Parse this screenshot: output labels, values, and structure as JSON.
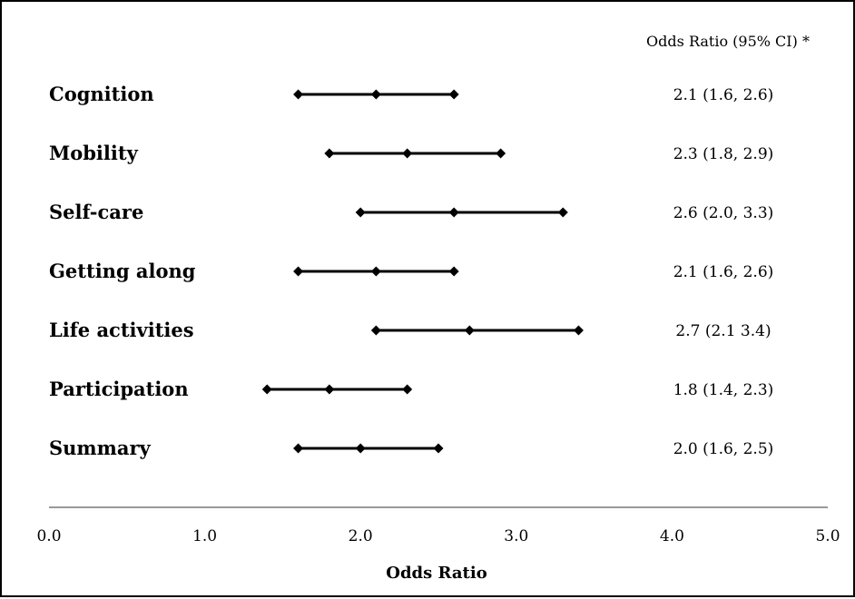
{
  "chart_data": {
    "type": "forest",
    "column_header": "Odds Ratio (95% CI) *",
    "xlabel": "Odds Ratio",
    "xlim": [
      0.0,
      5.0
    ],
    "xticks": [
      "0.0",
      "1.0",
      "2.0",
      "3.0",
      "4.0",
      "5.0"
    ],
    "grid": false,
    "rows": [
      {
        "label": "Cognition",
        "estimate": 2.1,
        "lower": 1.6,
        "upper": 2.6,
        "text": "2.1 (1.6, 2.6)"
      },
      {
        "label": "Mobility",
        "estimate": 2.3,
        "lower": 1.8,
        "upper": 2.9,
        "text": "2.3 (1.8, 2.9)"
      },
      {
        "label": "Self-care",
        "estimate": 2.6,
        "lower": 2.0,
        "upper": 3.3,
        "text": "2.6 (2.0, 3.3)"
      },
      {
        "label": "Getting along",
        "estimate": 2.1,
        "lower": 1.6,
        "upper": 2.6,
        "text": "2.1 (1.6, 2.6)"
      },
      {
        "label": "Life activities",
        "estimate": 2.7,
        "lower": 2.1,
        "upper": 3.4,
        "text": "2.7 (2.1 3.4)"
      },
      {
        "label": "Participation",
        "estimate": 1.8,
        "lower": 1.4,
        "upper": 2.3,
        "text": "1.8 (1.4, 2.3)"
      },
      {
        "label": "Summary",
        "estimate": 2.0,
        "lower": 1.6,
        "upper": 2.5,
        "text": "2.0 (1.6, 2.5)"
      }
    ]
  }
}
